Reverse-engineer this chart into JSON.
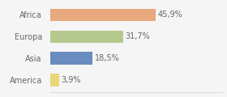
{
  "categories": [
    "Africa",
    "Europa",
    "Asia",
    "America"
  ],
  "values": [
    45.9,
    31.7,
    18.5,
    3.9
  ],
  "labels": [
    "45,9%",
    "31,7%",
    "18,5%",
    "3,9%"
  ],
  "bar_colors": [
    "#e8a97e",
    "#b5c98e",
    "#6b8cbf",
    "#e8d87a"
  ],
  "background_color": "#f5f5f5",
  "xlim": [
    0,
    75
  ],
  "bar_height": 0.58,
  "text_color": "#666666",
  "label_fontsize": 7,
  "tick_fontsize": 7
}
